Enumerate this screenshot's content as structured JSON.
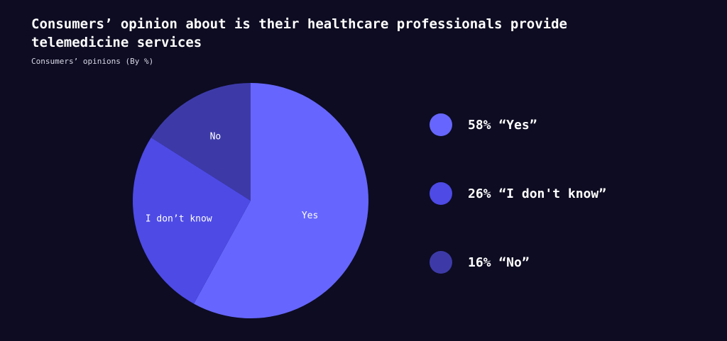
{
  "chart_data": {
    "type": "pie",
    "title": "Consumers’ opinion about is their healthcare professionals provide telemedicine services",
    "subtitle": "Consumers’ opinions (By %)",
    "slices": [
      {
        "label": "Yes",
        "value": 58,
        "color": "#6666ff",
        "legend": "58% “Yes”"
      },
      {
        "label": "I don’t know",
        "value": 26,
        "color": "#4d4ae6",
        "legend": "26% “I don't know”"
      },
      {
        "label": "No",
        "value": 16,
        "color": "#3d3aa8",
        "legend": "16% “No”"
      }
    ],
    "legend_placement": "right"
  }
}
